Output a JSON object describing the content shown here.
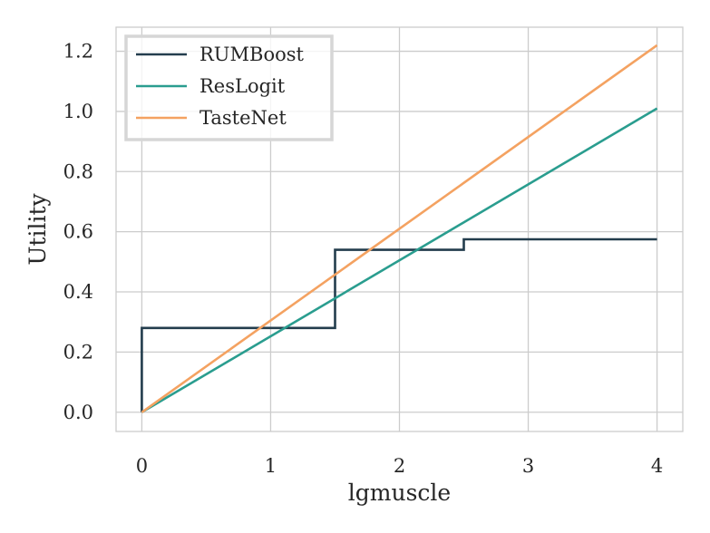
{
  "chart_data": {
    "type": "line",
    "xlabel": "lgmuscle",
    "ylabel": "Utility",
    "xlim": [
      -0.2,
      4.2
    ],
    "ylim": [
      -0.064,
      1.28
    ],
    "xticks": [
      0,
      1,
      2,
      3,
      4
    ],
    "yticks": [
      0.0,
      0.2,
      0.4,
      0.6,
      0.8,
      1.0,
      1.2
    ],
    "xtick_labels": [
      "0",
      "1",
      "2",
      "3",
      "4"
    ],
    "ytick_labels": [
      "0.0",
      "0.2",
      "0.4",
      "0.6",
      "0.8",
      "1.0",
      "1.2"
    ],
    "grid": true,
    "legend_position": "top-left",
    "series": [
      {
        "name": "RUMBoost",
        "color": "#233d4d",
        "step": true,
        "x": [
          0,
          0,
          1.5,
          1.5,
          2.5,
          2.5,
          4
        ],
        "y": [
          0,
          0.28,
          0.28,
          0.54,
          0.54,
          0.575,
          0.575
        ]
      },
      {
        "name": "ResLogit",
        "color": "#2a9d8f",
        "x": [
          0,
          4
        ],
        "y": [
          0,
          1.01
        ]
      },
      {
        "name": "TasteNet",
        "color": "#f4a261",
        "x": [
          0,
          4
        ],
        "y": [
          0,
          1.22
        ]
      }
    ]
  }
}
